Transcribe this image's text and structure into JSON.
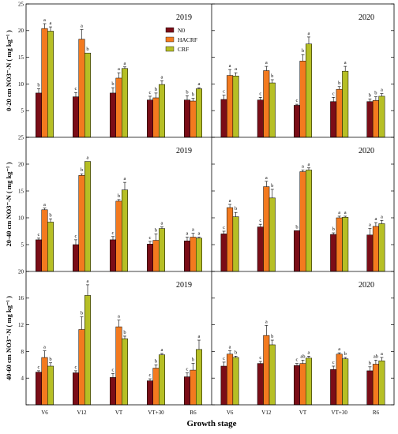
{
  "chart_data": {
    "type": "bar",
    "xlabel": "Growth stage",
    "categories": [
      "V6",
      "V12",
      "VT",
      "VT+30",
      "R6"
    ],
    "legend": [
      "N0",
      "HACRF",
      "CRF"
    ],
    "legend_position": "top-right of first panel",
    "colors": {
      "N0": "#7b0d17",
      "HACRF": "#f37a1f",
      "CRF": "#b6bf25"
    },
    "panels": [
      {
        "row": 0,
        "col": 0,
        "year": "2019",
        "ylabel": "0-20 cm NO3⁻-N ( mg kg⁻¹ )",
        "ylim": [
          0,
          25
        ],
        "series": [
          {
            "name": "N0",
            "values": [
              8.3,
              7.6,
              8.3,
              7.0,
              7.0
            ],
            "errors": [
              0.8,
              0.8,
              1.0,
              0.7,
              0.8
            ],
            "letters": [
              "b",
              "c",
              "b",
              "c",
              "b"
            ]
          },
          {
            "name": "HACRF",
            "values": [
              20.4,
              18.4,
              11.1,
              7.4,
              6.8
            ],
            "errors": [
              0.9,
              1.8,
              1.0,
              0.9,
              0.5
            ],
            "letters": [
              "a",
              "a",
              "a",
              "b",
              "b"
            ]
          },
          {
            "name": "CRF",
            "values": [
              19.9,
              15.8,
              12.9,
              9.9,
              9.1
            ],
            "errors": [
              0.8,
              0.0,
              0.3,
              0.7,
              0.2
            ],
            "letters": [
              "a",
              "b",
              "a",
              "a",
              "a"
            ]
          }
        ]
      },
      {
        "row": 0,
        "col": 1,
        "year": "2020",
        "ylabel": "",
        "ylim": [
          0,
          25
        ],
        "series": [
          {
            "name": "N0",
            "values": [
              7.1,
              7.0,
              6.0,
              6.7,
              6.7
            ],
            "errors": [
              0.8,
              0.5,
              0.2,
              0.8,
              0.5
            ],
            "letters": [
              "c",
              "c",
              "c",
              "c",
              "b"
            ]
          },
          {
            "name": "HACRF",
            "values": [
              11.6,
              12.5,
              14.3,
              9.0,
              6.9
            ],
            "errors": [
              1.1,
              0.8,
              1.2,
              0.5,
              0.7
            ],
            "letters": [
              "a",
              "a",
              "b",
              "b",
              "b"
            ]
          },
          {
            "name": "CRF",
            "values": [
              11.5,
              10.2,
              17.5,
              12.4,
              7.7
            ],
            "errors": [
              0.6,
              0.6,
              1.3,
              0.9,
              0.5
            ],
            "letters": [
              "a",
              "b",
              "a",
              "a",
              "a"
            ]
          }
        ]
      },
      {
        "row": 1,
        "col": 0,
        "year": "2019",
        "ylabel": "20-40 cm NO3⁻-N ( mg kg⁻¹ )",
        "ylim": [
          0,
          25
        ],
        "series": [
          {
            "name": "N0",
            "values": [
              5.9,
              5.0,
              5.9,
              5.1,
              5.7
            ],
            "errors": [
              0.3,
              0.9,
              0.6,
              0.5,
              0.7
            ],
            "letters": [
              "c",
              "c",
              "c",
              "c",
              "a"
            ]
          },
          {
            "name": "HACRF",
            "values": [
              11.5,
              17.9,
              13.1,
              5.8,
              6.4
            ],
            "errors": [
              0.3,
              0.3,
              0.3,
              1.2,
              0.7
            ],
            "letters": [
              "a",
              "b",
              "b",
              "b",
              "a"
            ]
          },
          {
            "name": "CRF",
            "values": [
              9.2,
              20.5,
              15.2,
              8.0,
              6.2
            ],
            "errors": [
              0.6,
              0.0,
              1.4,
              0.3,
              0.2
            ],
            "letters": [
              "b",
              "a",
              "a",
              "a",
              "a"
            ]
          }
        ]
      },
      {
        "row": 1,
        "col": 1,
        "year": "2020",
        "ylabel": "",
        "ylim": [
          0,
          25
        ],
        "series": [
          {
            "name": "N0",
            "values": [
              7.0,
              8.3,
              7.6,
              6.9,
              6.8
            ],
            "errors": [
              0.5,
              0.5,
              0.0,
              0.3,
              1.2
            ],
            "letters": [
              "c",
              "c",
              "b",
              "b",
              "a"
            ]
          },
          {
            "name": "HACRF",
            "values": [
              11.9,
              15.8,
              18.6,
              10.0,
              8.4
            ],
            "errors": [
              0.6,
              1.0,
              0.3,
              0.3,
              0.7
            ],
            "letters": [
              "a",
              "a",
              "a",
              "a",
              "a"
            ]
          },
          {
            "name": "CRF",
            "values": [
              10.2,
              13.7,
              18.9,
              10.1,
              8.9
            ],
            "errors": [
              0.8,
              1.6,
              0.4,
              0.2,
              0.6
            ],
            "letters": [
              "b",
              "b",
              "a",
              "a",
              "a"
            ]
          }
        ]
      },
      {
        "row": 2,
        "col": 0,
        "year": "2019",
        "ylabel": "40-60 cm NO3⁻-N ( mg kg⁻¹ )",
        "ylim": [
          0,
          20
        ],
        "series": [
          {
            "name": "N0",
            "values": [
              4.9,
              4.8,
              4.1,
              3.6,
              4.2
            ],
            "errors": [
              0.2,
              0.3,
              0.6,
              0.3,
              0.6
            ],
            "letters": [
              "c",
              "c",
              "c",
              "c",
              "c"
            ]
          },
          {
            "name": "HACRF",
            "values": [
              7.1,
              11.3,
              11.7,
              5.5,
              5.2
            ],
            "errors": [
              1.0,
              1.9,
              1.0,
              0.5,
              1.0
            ],
            "letters": [
              "a",
              "b",
              "a",
              "b",
              "b"
            ]
          },
          {
            "name": "CRF",
            "values": [
              5.8,
              16.4,
              9.9,
              7.5,
              8.3
            ],
            "errors": [
              0.5,
              1.6,
              0.4,
              0.2,
              1.4
            ],
            "letters": [
              "b",
              "a",
              "b",
              "a",
              "a"
            ]
          }
        ]
      },
      {
        "row": 2,
        "col": 1,
        "year": "2020",
        "ylabel": "",
        "ylim": [
          0,
          20
        ],
        "series": [
          {
            "name": "N0",
            "values": [
              5.8,
              6.2,
              5.9,
              5.3,
              5.1
            ],
            "errors": [
              0.6,
              0.3,
              0.3,
              0.5,
              0.6
            ],
            "letters": [
              "c",
              "c",
              "c",
              "c",
              "b"
            ]
          },
          {
            "name": "HACRF",
            "values": [
              7.6,
              10.4,
              6.2,
              7.6,
              6.1
            ],
            "errors": [
              0.5,
              1.5,
              0.5,
              0.2,
              0.6
            ],
            "letters": [
              "a",
              "a",
              "ab",
              "a",
              "ab"
            ]
          },
          {
            "name": "CRF",
            "values": [
              7.1,
              9.0,
              7.0,
              6.9,
              6.6
            ],
            "errors": [
              0.2,
              0.7,
              0.3,
              0.2,
              0.5
            ],
            "letters": [
              "b",
              "b",
              "a",
              "b",
              "a"
            ]
          }
        ]
      }
    ]
  }
}
